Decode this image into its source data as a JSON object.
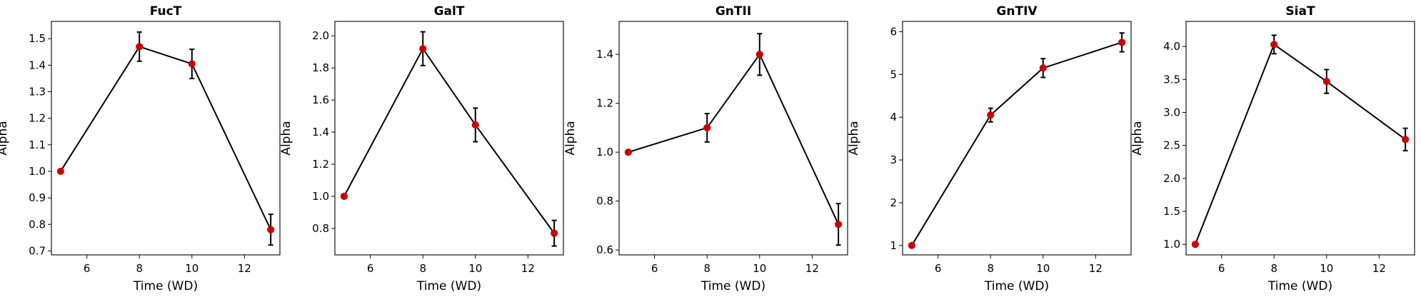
{
  "chart_data": [
    {
      "type": "line",
      "title": "FucT",
      "xlabel": "Time (WD)",
      "ylabel": "Alpha",
      "x": [
        5,
        8,
        10,
        13
      ],
      "y": [
        1.0,
        1.47,
        1.405,
        0.78
      ],
      "err": [
        0.0,
        0.055,
        0.055,
        0.058
      ],
      "xlim": [
        4.65,
        13.35
      ],
      "ylim": [
        0.685,
        1.565
      ],
      "xticks": [
        6,
        8,
        10,
        12
      ],
      "yticks": [
        0.7,
        0.8,
        0.9,
        1.0,
        1.1,
        1.2,
        1.3,
        1.4,
        1.5
      ],
      "ytick_labels": [
        "0.7",
        "0.8",
        "0.9",
        "1.0",
        "1.1",
        "1.2",
        "1.3",
        "1.4",
        "1.5"
      ]
    },
    {
      "type": "line",
      "title": "GalT",
      "xlabel": "Time (WD)",
      "ylabel": "Alpha",
      "x": [
        5,
        8,
        10,
        13
      ],
      "y": [
        1.0,
        1.92,
        1.445,
        0.77
      ],
      "err": [
        0.0,
        0.105,
        0.105,
        0.08
      ],
      "xlim": [
        4.65,
        13.35
      ],
      "ylim": [
        0.635,
        2.09
      ],
      "xticks": [
        6,
        8,
        10,
        12
      ],
      "yticks": [
        0.8,
        1.0,
        1.2,
        1.4,
        1.6,
        1.8,
        2.0
      ],
      "ytick_labels": [
        "0.8",
        "1.0",
        "1.2",
        "1.4",
        "1.6",
        "1.8",
        "2.0"
      ]
    },
    {
      "type": "line",
      "title": "GnTII",
      "xlabel": "Time (WD)",
      "ylabel": "Alpha",
      "x": [
        5,
        8,
        10,
        13
      ],
      "y": [
        1.0,
        1.1,
        1.4,
        0.705
      ],
      "err": [
        0.0,
        0.058,
        0.085,
        0.085
      ],
      "xlim": [
        4.65,
        13.35
      ],
      "ylim": [
        0.58,
        1.535
      ],
      "xticks": [
        6,
        8,
        10,
        12
      ],
      "yticks": [
        0.6,
        0.8,
        1.0,
        1.2,
        1.4
      ],
      "ytick_labels": [
        "0.6",
        "0.8",
        "1.0",
        "1.2",
        "1.4"
      ]
    },
    {
      "type": "line",
      "title": "GnTIV",
      "xlabel": "Time (WD)",
      "ylabel": "Alpha",
      "x": [
        5,
        8,
        10,
        13
      ],
      "y": [
        1.0,
        4.05,
        5.15,
        5.75
      ],
      "err": [
        0.0,
        0.16,
        0.22,
        0.22
      ],
      "xlim": [
        4.65,
        13.35
      ],
      "ylim": [
        0.78,
        6.24
      ],
      "xticks": [
        6,
        8,
        10,
        12
      ],
      "yticks": [
        1,
        2,
        3,
        4,
        5,
        6
      ],
      "ytick_labels": [
        "1",
        "2",
        "3",
        "4",
        "5",
        "6"
      ]
    },
    {
      "type": "line",
      "title": "SiaT",
      "xlabel": "Time (WD)",
      "ylabel": "Alpha",
      "x": [
        5,
        8,
        10,
        13
      ],
      "y": [
        1.0,
        4.03,
        3.47,
        2.59
      ],
      "err": [
        0.0,
        0.14,
        0.18,
        0.17
      ],
      "xlim": [
        4.65,
        13.35
      ],
      "ylim": [
        0.84,
        4.38
      ],
      "xticks": [
        6,
        8,
        10,
        12
      ],
      "yticks": [
        1.0,
        1.5,
        2.0,
        2.5,
        3.0,
        3.5,
        4.0
      ],
      "ytick_labels": [
        "1.0",
        "1.5",
        "2.0",
        "2.5",
        "3.0",
        "3.5",
        "4.0"
      ]
    }
  ],
  "colors": {
    "line": "#000000",
    "marker": "#cc0000",
    "errorbar": "#000000",
    "axes": "#000000",
    "text": "#000000"
  }
}
